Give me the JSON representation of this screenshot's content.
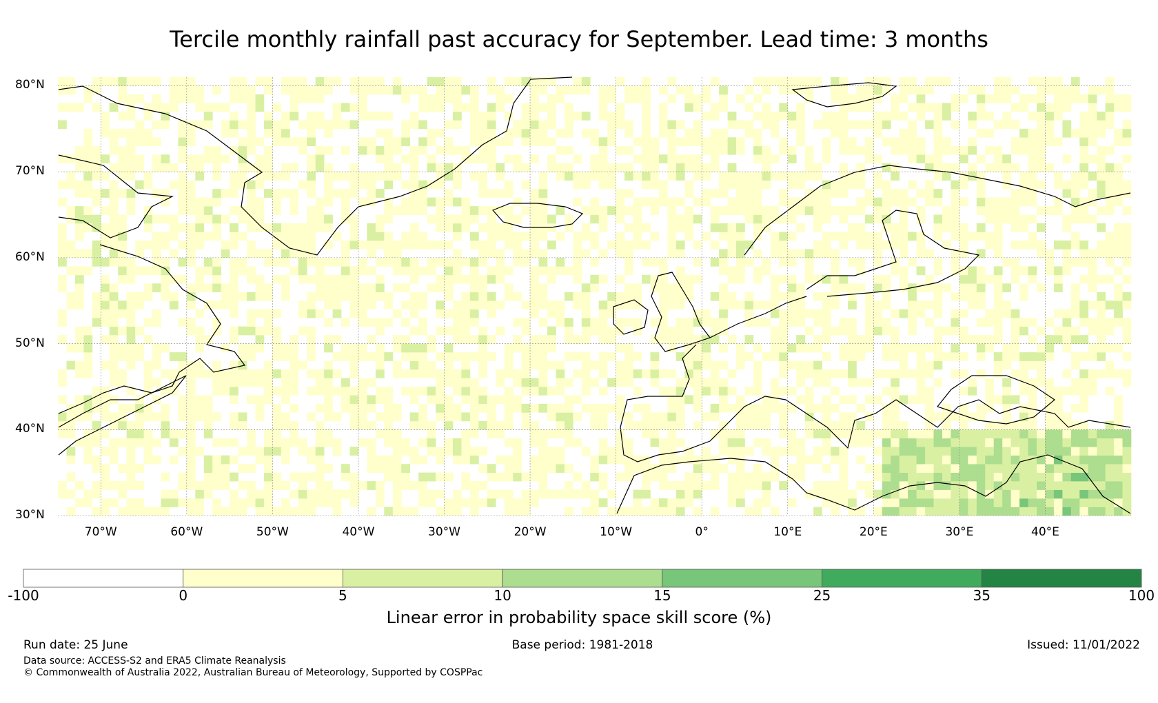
{
  "title": "Tercile monthly rainfall past accuracy for September. Lead time: 3 months",
  "map": {
    "lon_range": [
      -75,
      50
    ],
    "lat_range": [
      30,
      81
    ],
    "lat_ticks": [
      {
        "value": 80,
        "label": "80°N"
      },
      {
        "value": 70,
        "label": "70°N"
      },
      {
        "value": 60,
        "label": "60°N"
      },
      {
        "value": 50,
        "label": "50°N"
      },
      {
        "value": 40,
        "label": "40°N"
      },
      {
        "value": 30,
        "label": "30°N"
      }
    ],
    "lon_ticks": [
      {
        "value": -70,
        "label": "70°W"
      },
      {
        "value": -60,
        "label": "60°W"
      },
      {
        "value": -50,
        "label": "50°W"
      },
      {
        "value": -40,
        "label": "40°W"
      },
      {
        "value": -30,
        "label": "30°W"
      },
      {
        "value": -20,
        "label": "20°W"
      },
      {
        "value": -10,
        "label": "10°W"
      },
      {
        "value": 0,
        "label": "0°"
      },
      {
        "value": 10,
        "label": "10°E"
      },
      {
        "value": 20,
        "label": "20°E"
      },
      {
        "value": 30,
        "label": "30°E"
      },
      {
        "value": 40,
        "label": "40°E"
      }
    ],
    "gridlines": true
  },
  "colorbar": {
    "boundaries": [
      "-100",
      "0",
      "5",
      "10",
      "15",
      "25",
      "35",
      "100"
    ],
    "colors": [
      "#ffffff",
      "#ffffcc",
      "#d9f0a3",
      "#addd8e",
      "#78c679",
      "#41ab5d",
      "#238443"
    ],
    "label": "Linear error in probability space skill score (%)"
  },
  "footer": {
    "run_date": "Run date: 25 June",
    "base_period": "Base period: 1981-2018",
    "issued": "Issued: 11/01/2022",
    "data_source": "Data source: ACCESS-S2 and ERA5 Climate Reanalysis",
    "copyright": "© Commonwealth of Australia 2022, Australian Bureau of Meteorology, Supported by COSPPac"
  }
}
